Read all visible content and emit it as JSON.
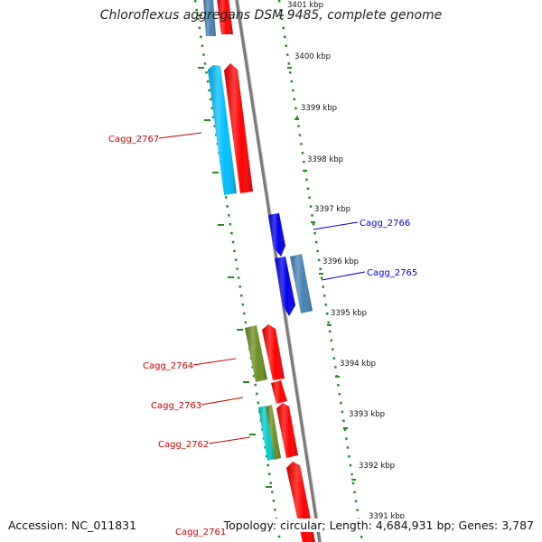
{
  "title": "Chloroflexus aggregans DSM 9485, complete genome",
  "footer": {
    "accession": "Accession: NC_011831",
    "summary": "Topology: circular; Length: 4,684,931 bp; Genes: 3,787"
  },
  "colors": {
    "forward_strand": "#ff0000",
    "reverse_strand": "#00bfff",
    "blue_gene": "#0000ee",
    "steelblue_gene": "#4682b4",
    "olive_gene": "#6b8e23",
    "teal_gene": "#00cccc",
    "tick": "#228b22",
    "backbone": "#808080",
    "label_red": "#cc0000",
    "label_blue": "#0000cc"
  },
  "ticks": [
    "3401 kbp",
    "3400 kbp",
    "3399 kbp",
    "3398 kbp",
    "3397 kbp",
    "3396 kbp",
    "3395 kbp",
    "3394 kbp",
    "3393 kbp",
    "3392 kbp",
    "3391 kbp"
  ],
  "genes": [
    {
      "id": "g_top_blue",
      "label": "",
      "color": "steelblue_gene",
      "side": "left",
      "label_color": "label_red"
    },
    {
      "id": "g_top_red",
      "label": "",
      "color": "forward_strand",
      "side": "left",
      "label_color": "label_red"
    },
    {
      "id": "g2767",
      "label": "Cagg_2767",
      "color": "reverse_strand",
      "side": "left",
      "label_color": "label_red"
    },
    {
      "id": "g2767r",
      "label": "",
      "color": "forward_strand",
      "side": "left",
      "label_color": "label_red"
    },
    {
      "id": "g2766",
      "label": "Cagg_2766",
      "color": "blue_gene",
      "side": "right",
      "label_color": "label_blue"
    },
    {
      "id": "g2765b",
      "label": "",
      "color": "blue_gene",
      "side": "right",
      "label_color": "label_blue"
    },
    {
      "id": "g2765",
      "label": "Cagg_2765",
      "color": "steelblue_gene",
      "side": "right",
      "label_color": "label_blue"
    },
    {
      "id": "g2764",
      "label": "Cagg_2764",
      "color": "olive_gene",
      "side": "left",
      "label_color": "label_red"
    },
    {
      "id": "g2764r",
      "label": "",
      "color": "forward_strand",
      "side": "left",
      "label_color": "label_red"
    },
    {
      "id": "g2763",
      "label": "Cagg_2763",
      "color": "forward_strand",
      "side": "left",
      "label_color": "label_red"
    },
    {
      "id": "g2762",
      "label": "Cagg_2762",
      "color": "teal_gene",
      "side": "left",
      "label_color": "label_red"
    },
    {
      "id": "g2762o",
      "label": "",
      "color": "olive_gene",
      "side": "left",
      "label_color": "label_red"
    },
    {
      "id": "g2762r",
      "label": "",
      "color": "forward_strand",
      "side": "left",
      "label_color": "label_red"
    },
    {
      "id": "g2761",
      "label": "Cagg_2761",
      "color": "forward_strand",
      "side": "left",
      "label_color": "label_red"
    }
  ]
}
